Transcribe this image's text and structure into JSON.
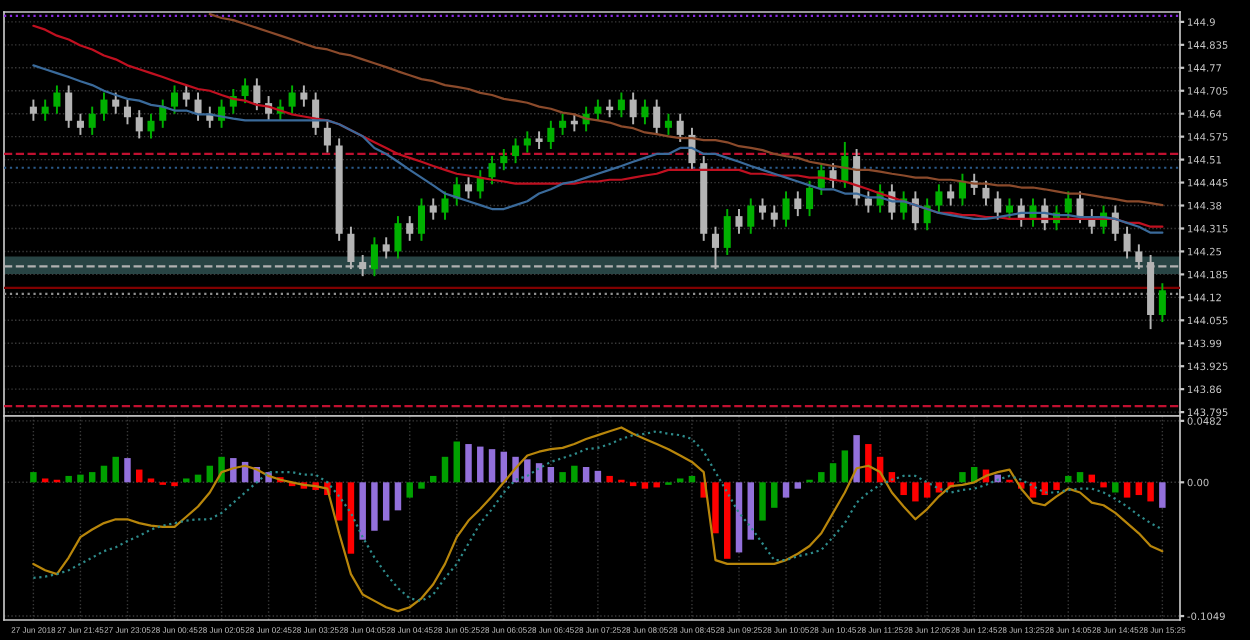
{
  "chart_data": [
    {
      "type": "candlestick",
      "categories": [
        null,
        null,
        null,
        null,
        null,
        null,
        null,
        null,
        null,
        null,
        null,
        null,
        null,
        null,
        null,
        null,
        null,
        null,
        null,
        null,
        null,
        null,
        null,
        null,
        null,
        null,
        null,
        null,
        null,
        null,
        null,
        null,
        null,
        null,
        null,
        null,
        null,
        null,
        null,
        null,
        null,
        null,
        null,
        null,
        null,
        null,
        null,
        null,
        null,
        null,
        null,
        null,
        null,
        null,
        null,
        null,
        null,
        null,
        null,
        null,
        null,
        null,
        null,
        null,
        null,
        null,
        null,
        null,
        null,
        null,
        null,
        null,
        null,
        null,
        null,
        null,
        null,
        null,
        null,
        null,
        null,
        null,
        null,
        null,
        null,
        null,
        null,
        null,
        null,
        null,
        null,
        null,
        null,
        null,
        null,
        null,
        null
      ],
      "ohlc": [
        [
          144.66,
          144.68,
          144.62,
          144.64
        ],
        [
          144.64,
          144.68,
          144.62,
          144.66
        ],
        [
          144.66,
          144.72,
          144.64,
          144.7
        ],
        [
          144.7,
          144.72,
          144.6,
          144.62
        ],
        [
          144.62,
          144.64,
          144.58,
          144.6
        ],
        [
          144.6,
          144.66,
          144.58,
          144.64
        ],
        [
          144.64,
          144.7,
          144.62,
          144.68
        ],
        [
          144.68,
          144.7,
          144.64,
          144.66
        ],
        [
          144.66,
          144.68,
          144.61,
          144.63
        ],
        [
          144.63,
          144.65,
          144.57,
          144.59
        ],
        [
          144.59,
          144.64,
          144.57,
          144.62
        ],
        [
          144.62,
          144.68,
          144.6,
          144.66
        ],
        [
          144.66,
          144.72,
          144.64,
          144.7
        ],
        [
          144.7,
          144.72,
          144.66,
          144.68
        ],
        [
          144.68,
          144.7,
          144.62,
          144.64
        ],
        [
          144.64,
          144.66,
          144.6,
          144.62
        ],
        [
          144.62,
          144.68,
          144.6,
          144.66
        ],
        [
          144.66,
          144.71,
          144.64,
          144.69
        ],
        [
          144.69,
          144.74,
          144.67,
          144.72
        ],
        [
          144.72,
          144.74,
          144.65,
          144.67
        ],
        [
          144.67,
          144.69,
          144.62,
          144.64
        ],
        [
          144.64,
          144.68,
          144.62,
          144.66
        ],
        [
          144.66,
          144.72,
          144.64,
          144.7
        ],
        [
          144.7,
          144.72,
          144.66,
          144.68
        ],
        [
          144.68,
          144.7,
          144.58,
          144.6
        ],
        [
          144.6,
          144.62,
          144.53,
          144.55
        ],
        [
          144.55,
          144.57,
          144.28,
          144.3
        ],
        [
          144.3,
          144.32,
          144.2,
          144.22
        ],
        [
          144.22,
          144.24,
          144.18,
          144.2
        ],
        [
          144.2,
          144.29,
          144.18,
          144.27
        ],
        [
          144.27,
          144.29,
          144.23,
          144.25
        ],
        [
          144.25,
          144.35,
          144.23,
          144.33
        ],
        [
          144.33,
          144.35,
          144.28,
          144.3
        ],
        [
          144.3,
          144.4,
          144.28,
          144.38
        ],
        [
          144.38,
          144.4,
          144.34,
          144.36
        ],
        [
          144.36,
          144.42,
          144.34,
          144.4
        ],
        [
          144.4,
          144.46,
          144.38,
          144.44
        ],
        [
          144.44,
          144.46,
          144.4,
          144.42
        ],
        [
          144.42,
          144.48,
          144.4,
          144.46
        ],
        [
          144.46,
          144.52,
          144.44,
          144.5
        ],
        [
          144.5,
          144.54,
          144.48,
          144.52
        ],
        [
          144.52,
          144.57,
          144.5,
          144.55
        ],
        [
          144.55,
          144.59,
          144.53,
          144.57
        ],
        [
          144.57,
          144.59,
          144.54,
          144.56
        ],
        [
          144.56,
          144.62,
          144.54,
          144.6
        ],
        [
          144.6,
          144.64,
          144.58,
          144.62
        ],
        [
          144.62,
          144.64,
          144.59,
          144.61
        ],
        [
          144.61,
          144.66,
          144.59,
          144.64
        ],
        [
          144.64,
          144.68,
          144.62,
          144.66
        ],
        [
          144.66,
          144.68,
          144.63,
          144.65
        ],
        [
          144.65,
          144.7,
          144.63,
          144.68
        ],
        [
          144.68,
          144.7,
          144.61,
          144.63
        ],
        [
          144.63,
          144.68,
          144.61,
          144.66
        ],
        [
          144.66,
          144.68,
          144.58,
          144.6
        ],
        [
          144.6,
          144.64,
          144.58,
          144.62
        ],
        [
          144.62,
          144.64,
          144.56,
          144.58
        ],
        [
          144.58,
          144.6,
          144.48,
          144.5
        ],
        [
          144.5,
          144.52,
          144.28,
          144.3
        ],
        [
          144.3,
          144.32,
          144.2,
          144.26
        ],
        [
          144.26,
          144.37,
          144.24,
          144.35
        ],
        [
          144.35,
          144.37,
          144.3,
          144.32
        ],
        [
          144.32,
          144.4,
          144.3,
          144.38
        ],
        [
          144.38,
          144.4,
          144.34,
          144.36
        ],
        [
          144.36,
          144.38,
          144.32,
          144.34
        ],
        [
          144.34,
          144.42,
          144.32,
          144.4
        ],
        [
          144.4,
          144.42,
          144.35,
          144.37
        ],
        [
          144.37,
          144.45,
          144.35,
          144.43
        ],
        [
          144.43,
          144.5,
          144.41,
          144.48
        ],
        [
          144.48,
          144.5,
          144.43,
          144.45
        ],
        [
          144.45,
          144.56,
          144.43,
          144.52
        ],
        [
          144.52,
          144.54,
          144.38,
          144.4
        ],
        [
          144.4,
          144.42,
          144.36,
          144.38
        ],
        [
          144.38,
          144.44,
          144.36,
          144.42
        ],
        [
          144.42,
          144.44,
          144.34,
          144.36
        ],
        [
          144.36,
          144.42,
          144.34,
          144.4
        ],
        [
          144.4,
          144.42,
          144.31,
          144.33
        ],
        [
          144.33,
          144.4,
          144.31,
          144.38
        ],
        [
          144.38,
          144.44,
          144.36,
          144.42
        ],
        [
          144.42,
          144.44,
          144.38,
          144.4
        ],
        [
          144.4,
          144.47,
          144.38,
          144.45
        ],
        [
          144.45,
          144.47,
          144.41,
          144.43
        ],
        [
          144.43,
          144.45,
          144.38,
          144.4
        ],
        [
          144.4,
          144.42,
          144.34,
          144.36
        ],
        [
          144.36,
          144.4,
          144.34,
          144.38
        ],
        [
          144.38,
          144.4,
          144.32,
          144.34
        ],
        [
          144.34,
          144.4,
          144.32,
          144.38
        ],
        [
          144.38,
          144.4,
          144.31,
          144.33
        ],
        [
          144.33,
          144.38,
          144.31,
          144.36
        ],
        [
          144.36,
          144.42,
          144.34,
          144.4
        ],
        [
          144.4,
          144.42,
          144.33,
          144.35
        ],
        [
          144.35,
          144.37,
          144.3,
          144.32
        ],
        [
          144.32,
          144.38,
          144.3,
          144.36
        ],
        [
          144.36,
          144.38,
          144.28,
          144.3
        ],
        [
          144.3,
          144.32,
          144.23,
          144.25
        ],
        [
          144.25,
          144.27,
          144.2,
          144.22
        ],
        [
          144.22,
          144.24,
          144.03,
          144.07
        ],
        [
          144.07,
          144.16,
          144.05,
          144.14
        ]
      ],
      "series": [
        {
          "type": "line",
          "color": "#8b4a2b",
          "values": [
            null,
            null,
            null,
            null,
            null,
            null,
            null,
            null,
            null,
            null,
            null,
            null,
            null,
            null,
            null,
            144.922,
            144.911,
            144.905,
            144.894,
            144.883,
            144.872,
            144.861,
            144.85,
            144.838,
            144.827,
            144.822,
            144.811,
            144.805,
            144.794,
            144.783,
            144.772,
            144.76,
            144.749,
            144.738,
            144.732,
            144.721,
            144.716,
            144.71,
            144.699,
            144.693,
            144.682,
            144.677,
            144.671,
            144.66,
            144.654,
            144.643,
            144.638,
            144.626,
            144.621,
            144.615,
            144.604,
            144.599,
            144.587,
            144.582,
            144.576,
            144.571,
            144.571,
            144.565,
            144.565,
            144.559,
            144.548,
            144.543,
            144.537,
            144.526,
            144.52,
            144.515,
            144.504,
            144.498,
            144.492,
            144.487,
            144.481,
            144.481,
            144.476,
            144.47,
            144.465,
            144.459,
            144.459,
            144.453,
            144.453,
            144.448,
            144.442,
            144.442,
            144.437,
            144.437,
            144.431,
            144.431,
            144.426,
            144.42,
            144.414,
            144.414,
            144.409,
            144.403,
            144.398,
            144.392,
            144.392,
            144.387,
            144.381
          ]
        },
        {
          "type": "line",
          "color": "#c01020",
          "values": [
            144.889,
            144.878,
            144.861,
            144.85,
            144.833,
            144.822,
            144.805,
            144.794,
            144.777,
            144.766,
            144.755,
            144.744,
            144.732,
            144.721,
            144.71,
            144.705,
            144.693,
            144.682,
            144.677,
            144.665,
            144.66,
            144.649,
            144.638,
            144.632,
            144.626,
            144.621,
            144.61,
            144.593,
            144.576,
            144.559,
            144.543,
            144.526,
            144.515,
            144.504,
            144.492,
            144.481,
            144.47,
            144.465,
            144.459,
            144.453,
            144.448,
            144.442,
            144.442,
            144.442,
            144.442,
            144.442,
            144.442,
            144.448,
            144.448,
            144.453,
            144.453,
            144.459,
            144.465,
            144.47,
            144.481,
            144.481,
            144.481,
            144.481,
            144.481,
            144.481,
            144.481,
            144.47,
            144.47,
            144.465,
            144.465,
            144.465,
            144.459,
            144.459,
            144.453,
            144.448,
            144.437,
            144.426,
            144.414,
            144.403,
            144.392,
            144.381,
            144.37,
            144.359,
            144.359,
            144.353,
            144.353,
            144.347,
            144.347,
            144.342,
            144.342,
            144.342,
            144.342,
            144.342,
            144.342,
            144.342,
            144.342,
            144.342,
            144.342,
            144.331,
            144.331,
            144.32,
            144.32
          ]
        },
        {
          "type": "line",
          "color": "#3a6a9a",
          "values": [
            144.777,
            144.766,
            144.755,
            144.744,
            144.732,
            144.721,
            144.705,
            144.693,
            144.682,
            144.677,
            144.665,
            144.66,
            144.649,
            144.649,
            144.638,
            144.638,
            144.632,
            144.626,
            144.621,
            144.621,
            144.621,
            144.621,
            144.621,
            144.621,
            144.621,
            144.621,
            144.61,
            144.593,
            144.576,
            144.543,
            144.526,
            144.504,
            144.481,
            144.459,
            144.437,
            144.414,
            144.403,
            144.392,
            144.381,
            144.37,
            144.37,
            144.381,
            144.392,
            144.414,
            144.426,
            144.442,
            144.448,
            144.459,
            144.47,
            144.481,
            144.492,
            144.504,
            144.515,
            144.526,
            144.526,
            144.543,
            144.543,
            144.526,
            144.526,
            144.515,
            144.504,
            144.492,
            144.481,
            144.47,
            144.459,
            144.448,
            144.437,
            144.426,
            144.426,
            144.414,
            144.414,
            144.403,
            144.403,
            144.392,
            144.392,
            144.381,
            144.37,
            144.359,
            144.353,
            144.347,
            144.342,
            144.342,
            144.347,
            144.353,
            144.359,
            144.359,
            144.359,
            144.353,
            144.353,
            144.347,
            144.347,
            144.347,
            144.342,
            144.331,
            144.32,
            144.303,
            144.303
          ]
        }
      ],
      "ylim": [
        143.784,
        144.928
      ],
      "yticks": [
        143.795,
        143.86,
        143.925,
        143.99,
        144.055,
        144.12,
        144.185,
        144.25,
        144.315,
        144.38,
        144.445,
        144.51,
        144.575,
        144.64,
        144.705,
        144.77,
        144.835,
        144.9
      ],
      "ref_lines": [
        {
          "axis": "y",
          "value": 144.917,
          "color": "#8a2be2",
          "line_style": "dotted"
        },
        {
          "axis": "y",
          "value": 144.526,
          "color": "#c01030",
          "line_style": "dashed"
        },
        {
          "axis": "y",
          "value": 144.487,
          "color": "#2a5a8a",
          "line_style": "dotted"
        },
        {
          "axis": "y",
          "value": 144.208,
          "color": "#b0b0b0",
          "line_style": "dashed"
        },
        {
          "axis": "y",
          "value": 144.147,
          "color": "#800000",
          "line_style": "solid"
        },
        {
          "axis": "y",
          "value": 144.13,
          "color": "#909090",
          "line_style": "dotted"
        },
        {
          "axis": "y",
          "value": 143.812,
          "color": "#c01030",
          "line_style": "dashed"
        }
      ],
      "bands": [
        {
          "axis": "y",
          "from": 144.186,
          "to": 144.236,
          "color": "#2f5050"
        }
      ],
      "grid": true,
      "tick_labels": "y"
    },
    {
      "type": "bar",
      "categories": [
        "27 Jun 2018",
        null,
        null,
        null,
        "27 Jun 21:45",
        null,
        null,
        null,
        "27 Jun 23:05",
        null,
        null,
        null,
        "28 Jun 00:45",
        null,
        null,
        null,
        "28 Jun 02:05",
        null,
        null,
        null,
        "28 Jun 02:45",
        null,
        null,
        null,
        "28 Jun 03:25",
        null,
        null,
        null,
        "28 Jun 04:05",
        null,
        null,
        null,
        "28 Jun 04:45",
        null,
        null,
        null,
        "28 Jun 05:25",
        null,
        null,
        null,
        "28 Jun 06:05",
        null,
        null,
        null,
        "28 Jun 06:45",
        null,
        null,
        null,
        "28 Jun 07:25",
        null,
        null,
        null,
        "28 Jun 08:05",
        null,
        null,
        null,
        "28 Jun 08:45",
        null,
        null,
        null,
        "28 Jun 09:25",
        null,
        null,
        null,
        "28 Jun 10:05",
        null,
        null,
        null,
        "28 Jun 10:45",
        null,
        null,
        null,
        "28 Jun 11:25",
        null,
        null,
        null,
        "28 Jun 12:05",
        null,
        null,
        null,
        "28 Jun 12:45",
        null,
        null,
        null,
        "28 Jun 13:25",
        null,
        null,
        null,
        "28 Jun 14:05",
        null,
        null,
        null,
        "28 Jun 14:45",
        null,
        null,
        null,
        "28 Jun 15:25"
      ],
      "series": [
        {
          "type": "bar",
          "colors": [
            "#00a000",
            "#ff0000",
            "#ff0000",
            "#00a000",
            "#00a000",
            "#00a000",
            "#00a000",
            "#00a000",
            "#9370db",
            "#ff0000",
            "#ff0000",
            "#ff0000",
            "#ff0000",
            "#00a000",
            "#00a000",
            "#00a000",
            "#00a000",
            "#9370db",
            "#9370db",
            "#9370db",
            "#9370db",
            "#ff0000",
            "#ff0000",
            "#ff0000",
            "#ff0000",
            "#ff0000",
            "#ff0000",
            "#ff0000",
            "#9370db",
            "#9370db",
            "#9370db",
            "#9370db",
            "#00a000",
            "#00a000",
            "#00a000",
            "#00a000",
            "#00a000",
            "#9370db",
            "#9370db",
            "#9370db",
            "#9370db",
            "#9370db",
            "#9370db",
            "#9370db",
            "#9370db",
            "#00a000",
            "#00a000",
            "#9370db",
            "#9370db",
            "#ff0000",
            "#ff0000",
            "#ff0000",
            "#ff0000",
            "#ff0000",
            "#00a000",
            "#00a000",
            "#00a000",
            "#ff0000",
            "#ff0000",
            "#ff0000",
            "#9370db",
            "#9370db",
            "#00a000",
            "#00a000",
            "#9370db",
            "#9370db",
            "#00a000",
            "#00a000",
            "#00a000",
            "#00a000",
            "#9370db",
            "#ff0000",
            "#ff0000",
            "#ff0000",
            "#ff0000",
            "#ff0000",
            "#ff0000",
            "#ff0000",
            "#ff0000",
            "#00a000",
            "#00a000",
            "#ff0000",
            "#9370db",
            "#ff0000",
            "#ff0000",
            "#ff0000",
            "#ff0000",
            "#ff0000",
            "#00a000",
            "#00a000",
            "#ff0000",
            "#ff0000",
            "#00a000",
            "#ff0000",
            "#ff0000",
            "#ff0000",
            "#9370db"
          ],
          "values": [
            0.008,
            0.003,
            0.002,
            0.005,
            0.006,
            0.008,
            0.013,
            0.02,
            0.019,
            0.01,
            0.003,
            -0.002,
            -0.003,
            0.003,
            0.006,
            0.013,
            0.02,
            0.019,
            0.016,
            0.012,
            0.008,
            0.004,
            -0.003,
            -0.005,
            -0.006,
            -0.01,
            -0.03,
            -0.056,
            -0.045,
            -0.038,
            -0.03,
            -0.022,
            -0.012,
            -0.005,
            0.005,
            0.02,
            0.032,
            0.03,
            0.028,
            0.026,
            0.024,
            0.02,
            0.018,
            0.015,
            0.012,
            0.008,
            0.013,
            0.012,
            0.009,
            0.005,
            0.002,
            -0.003,
            -0.005,
            -0.004,
            -0.002,
            0.003,
            0.005,
            -0.012,
            -0.04,
            -0.06,
            -0.055,
            -0.045,
            -0.03,
            -0.02,
            -0.012,
            -0.005,
            0.002,
            0.008,
            0.015,
            0.025,
            0.037,
            0.03,
            0.02,
            0.008,
            -0.01,
            -0.015,
            -0.012,
            -0.008,
            -0.004,
            0.008,
            0.012,
            0.01,
            0.006,
            0.002,
            -0.005,
            -0.012,
            -0.01,
            -0.006,
            0.005,
            0.008,
            0.006,
            -0.004,
            -0.008,
            -0.012,
            -0.01,
            -0.015,
            -0.02
          ]
        },
        {
          "type": "line",
          "color": "#b8860b",
          "values": [
            -0.064,
            -0.069,
            -0.072,
            -0.059,
            -0.043,
            -0.037,
            -0.032,
            -0.029,
            -0.029,
            -0.032,
            -0.034,
            -0.035,
            -0.035,
            -0.027,
            -0.019,
            -0.008,
            0.008,
            0.011,
            0.013,
            0.01,
            0.005,
            0.002,
            0.0,
            -0.002,
            -0.003,
            -0.005,
            -0.04,
            -0.072,
            -0.088,
            -0.093,
            -0.098,
            -0.101,
            -0.098,
            -0.091,
            -0.08,
            -0.064,
            -0.043,
            -0.03,
            -0.021,
            -0.011,
            0.0,
            0.011,
            0.021,
            0.024,
            0.026,
            0.027,
            0.03,
            0.034,
            0.037,
            0.04,
            0.043,
            0.038,
            0.034,
            0.03,
            0.026,
            0.021,
            0.016,
            0.008,
            -0.061,
            -0.064,
            -0.064,
            -0.064,
            -0.064,
            -0.064,
            -0.061,
            -0.056,
            -0.05,
            -0.04,
            -0.024,
            -0.008,
            0.011,
            0.013,
            0.008,
            -0.008,
            -0.019,
            -0.029,
            -0.021,
            -0.011,
            -0.003,
            -0.002,
            0.0,
            0.005,
            0.008,
            0.01,
            -0.005,
            -0.016,
            -0.018,
            -0.011,
            -0.005,
            -0.008,
            -0.016,
            -0.018,
            -0.024,
            -0.032,
            -0.04,
            -0.05,
            -0.054
          ]
        },
        {
          "type": "line",
          "color": "#2e8b8b",
          "line_style": "dotted",
          "values": [
            -0.075,
            -0.074,
            -0.072,
            -0.069,
            -0.064,
            -0.059,
            -0.054,
            -0.051,
            -0.046,
            -0.042,
            -0.037,
            -0.034,
            -0.032,
            -0.03,
            -0.029,
            -0.029,
            -0.024,
            -0.016,
            -0.008,
            0.0,
            0.008,
            0.008,
            0.008,
            0.006,
            0.006,
            0.0,
            -0.011,
            -0.024,
            -0.043,
            -0.059,
            -0.072,
            -0.083,
            -0.091,
            -0.093,
            -0.088,
            -0.075,
            -0.064,
            -0.048,
            -0.032,
            -0.021,
            -0.008,
            0.002,
            0.005,
            0.011,
            0.016,
            0.019,
            0.022,
            0.026,
            0.027,
            0.03,
            0.034,
            0.037,
            0.038,
            0.04,
            0.038,
            0.037,
            0.034,
            0.024,
            0.008,
            -0.008,
            -0.024,
            -0.035,
            -0.048,
            -0.061,
            -0.061,
            -0.058,
            -0.056,
            -0.053,
            -0.043,
            -0.032,
            -0.016,
            -0.008,
            -0.002,
            0.002,
            0.005,
            0.005,
            0.0,
            -0.005,
            -0.008,
            -0.006,
            -0.005,
            -0.002,
            0.002,
            0.005,
            0.002,
            -0.003,
            -0.008,
            -0.008,
            -0.006,
            -0.005,
            -0.005,
            -0.008,
            -0.013,
            -0.019,
            -0.026,
            -0.032,
            -0.037
          ]
        }
      ],
      "ylim": [
        -0.108,
        0.052
      ],
      "yticks": [
        -0.1049,
        {
          "value": 0,
          "label": "0.00"
        },
        0.0482
      ],
      "grid": true
    }
  ]
}
